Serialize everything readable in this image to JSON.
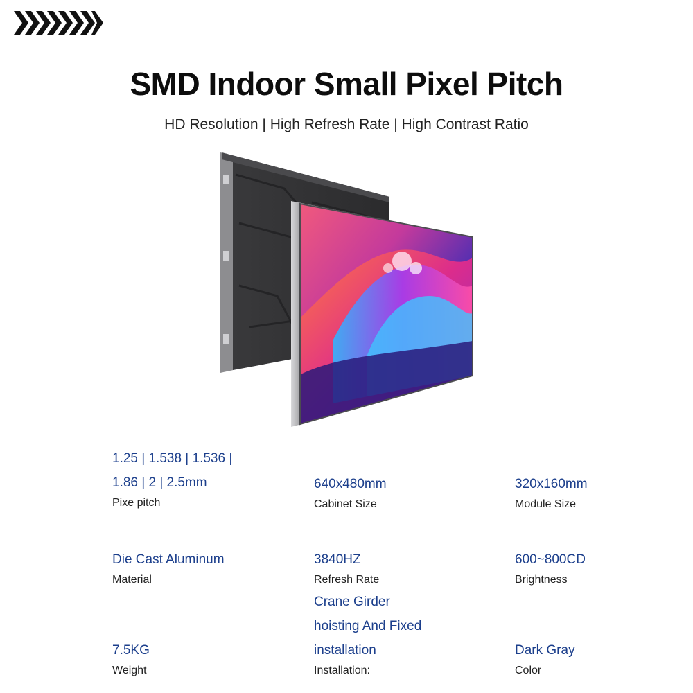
{
  "header": {
    "logo_icon": "chevron-arrows-icon",
    "title": "SMD Indoor Small Pixel Pitch",
    "subtitle": "HD Resolution | High Refresh Rate | High Contrast Ratio"
  },
  "product_image": {
    "description_icon": "led-cabinet-panel-icon"
  },
  "specs": {
    "pixel_pitch": {
      "value_line1": "1.25 | 1.538 | 1.536 |",
      "value_line2": "1.86 | 2 | 2.5mm",
      "label": "Pixe pitch"
    },
    "cabinet_size": {
      "value": "640x480mm",
      "label": "Cabinet Size"
    },
    "module_size": {
      "value": "320x160mm",
      "label": "Module Size"
    },
    "material": {
      "value": "Die Cast Aluminum",
      "label": "Material"
    },
    "refresh_rate": {
      "value": "3840HZ",
      "label": "Refresh Rate"
    },
    "brightness": {
      "value": "600~800CD",
      "label": "Brightness"
    },
    "weight": {
      "value": "7.5KG",
      "label": "Weight"
    },
    "installation": {
      "value_line1": "Crane Girder",
      "value_line2": "hoisting And Fixed",
      "value_line3": "installation",
      "label": "Installation:"
    },
    "color": {
      "value": "Dark Gray",
      "label": "Color"
    }
  },
  "colors": {
    "value_text": "#1c3f8c",
    "label_text": "#222222"
  }
}
